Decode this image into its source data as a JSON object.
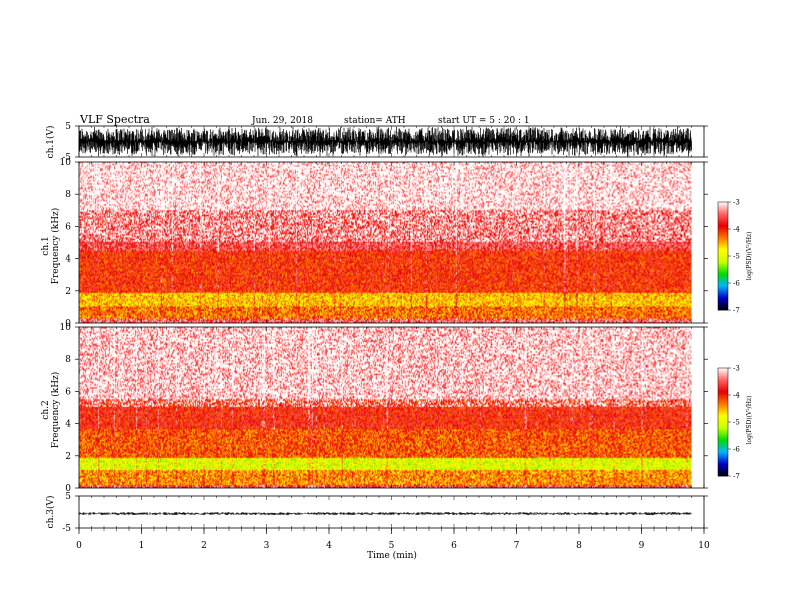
{
  "header": {
    "title": "VLF  Spectra",
    "date": "Jun. 29, 2018",
    "station": "station= ATH",
    "start_time": "start  UT  =    5  : 20 : 1"
  },
  "chart_data": [
    {
      "type": "line",
      "panel": "ch1-waveform",
      "ylabel": "ch.1(V)",
      "yticks": [
        "5",
        "-5"
      ],
      "ylim": [
        -5,
        5
      ],
      "xlim": [
        0,
        10
      ],
      "color": "#000000",
      "description_of_signal": "dense broadband noise filling nearly full range"
    },
    {
      "type": "heatmap",
      "panel": "ch1-spectrogram",
      "ylabel_1": "ch.1",
      "ylabel_2": "Frequency  (kHz)",
      "yticks": [
        "0",
        "2",
        "4",
        "6",
        "8",
        "10"
      ],
      "ylim": [
        0,
        10
      ],
      "xlim": [
        0,
        10
      ],
      "xmax_data": 9.8,
      "bands": [
        {
          "from_khz": 0.0,
          "to_khz": 0.3,
          "level": -3.5
        },
        {
          "from_khz": 0.3,
          "to_khz": 1.0,
          "level": -4.3
        },
        {
          "from_khz": 1.0,
          "to_khz": 1.9,
          "level": -4.6
        },
        {
          "from_khz": 1.9,
          "to_khz": 4.5,
          "level": -4.0
        },
        {
          "from_khz": 4.5,
          "to_khz": 7.0,
          "level": -3.6
        },
        {
          "from_khz": 7.0,
          "to_khz": 10.0,
          "level": -3.2
        }
      ],
      "colorbar": {
        "label": "log(PSD)(V²/Hz)",
        "ticks": [
          "-3",
          "-4",
          "-5",
          "-6",
          "-7"
        ],
        "range": [
          -7,
          -3
        ]
      }
    },
    {
      "type": "heatmap",
      "panel": "ch2-spectrogram",
      "ylabel_1": "ch.2",
      "ylabel_2": "Frequency  (kHz)",
      "yticks": [
        "0",
        "2",
        "4",
        "6",
        "8",
        "10"
      ],
      "ylim": [
        0,
        10
      ],
      "xlim": [
        0,
        10
      ],
      "xmax_data": 9.8,
      "bands": [
        {
          "from_khz": 0.0,
          "to_khz": 0.2,
          "level": -3.6
        },
        {
          "from_khz": 0.2,
          "to_khz": 1.1,
          "level": -4.4
        },
        {
          "from_khz": 1.1,
          "to_khz": 1.9,
          "level": -5.0
        },
        {
          "from_khz": 1.9,
          "to_khz": 3.6,
          "level": -4.2
        },
        {
          "from_khz": 3.6,
          "to_khz": 5.5,
          "level": -3.9
        },
        {
          "from_khz": 5.5,
          "to_khz": 10.0,
          "level": -3.3
        }
      ],
      "colorbar": {
        "label": "log(PSD)(V²/Hz)",
        "ticks": [
          "-3",
          "-4",
          "-5",
          "-6",
          "-7"
        ],
        "range": [
          -7,
          -3
        ]
      }
    },
    {
      "type": "line",
      "panel": "ch3-waveform",
      "ylabel": "ch.3(V)",
      "yticks": [
        "5",
        "-5"
      ],
      "ylim": [
        -5,
        5
      ],
      "xlim": [
        0,
        10
      ],
      "color": "#000000",
      "baseline_v": -0.5
    }
  ],
  "xaxis": {
    "label": "Time  (min)",
    "ticks": [
      "0",
      "1",
      "2",
      "3",
      "4",
      "5",
      "6",
      "7",
      "8",
      "9",
      "10"
    ]
  },
  "colors": {
    "colormap": [
      "#000000",
      "#0000c8",
      "#00b4ff",
      "#00dc00",
      "#c8ff00",
      "#ffff00",
      "#ff7800",
      "#e60000",
      "#ff6464",
      "#ffffff"
    ]
  }
}
